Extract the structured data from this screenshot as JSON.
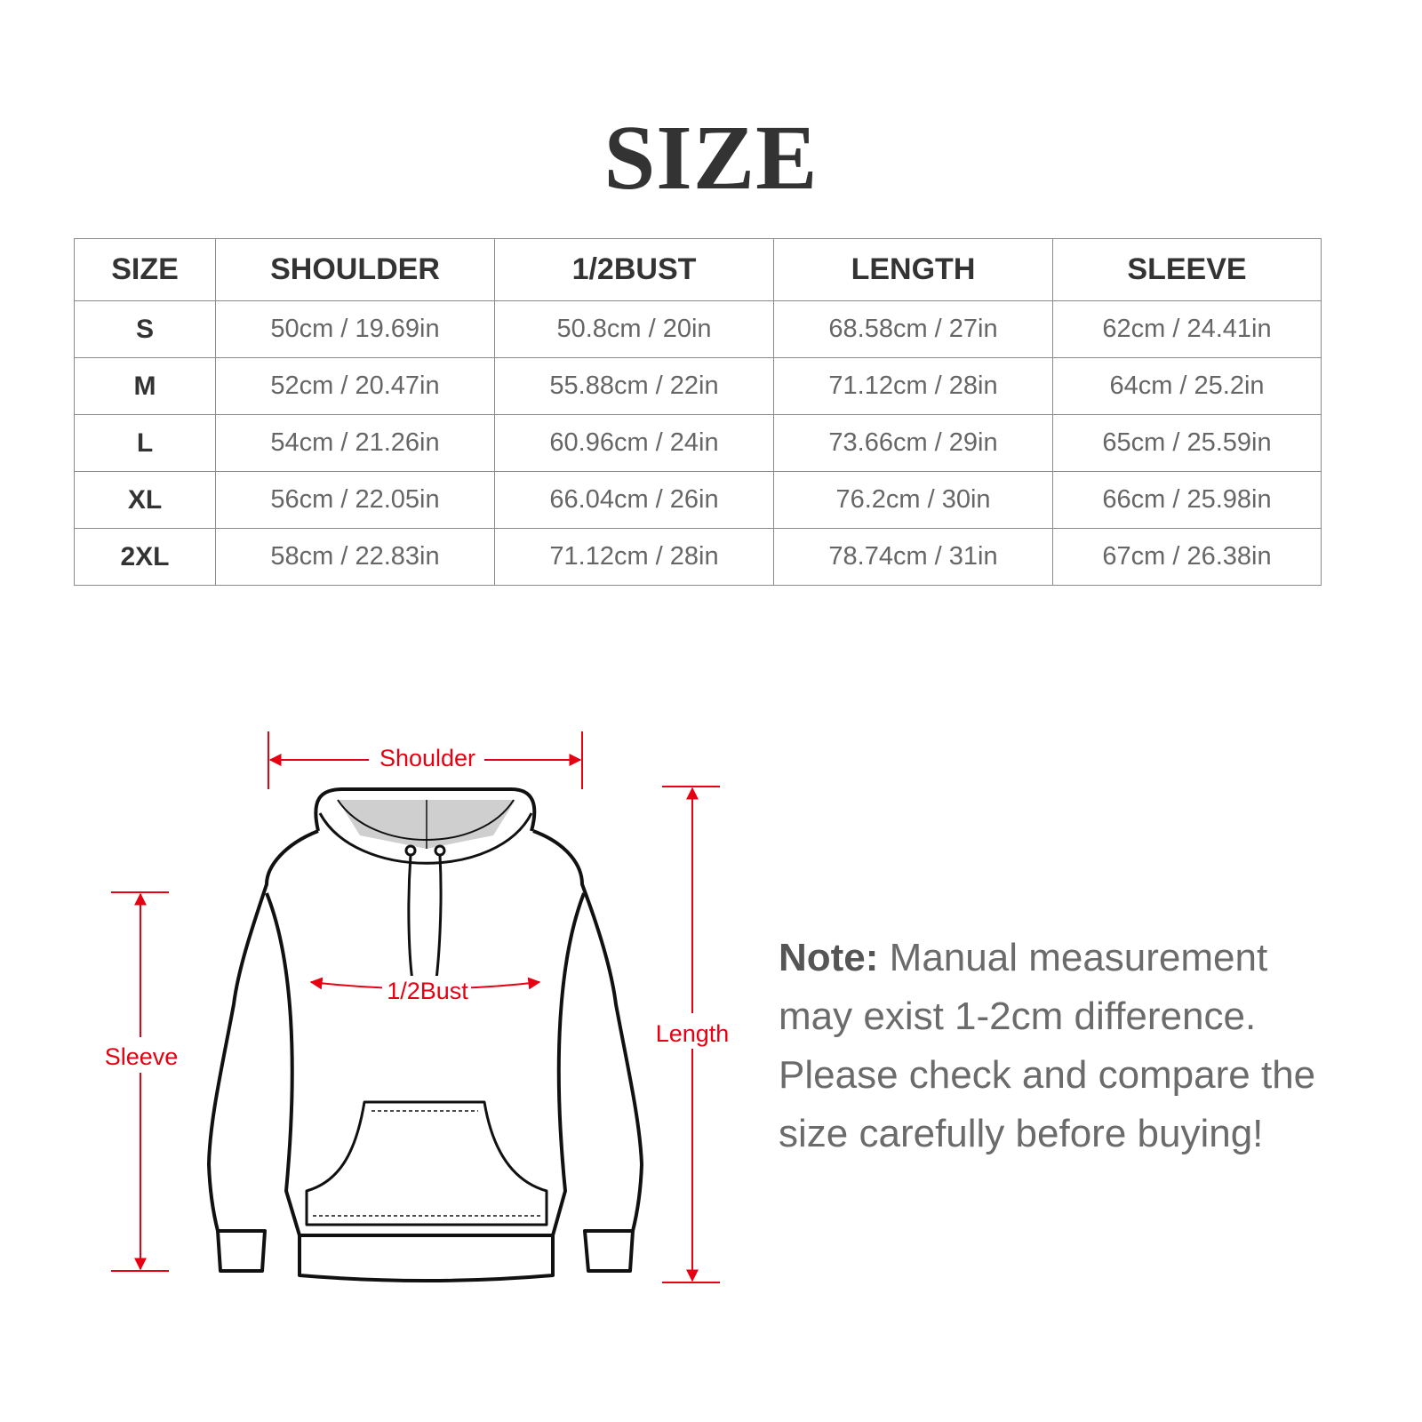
{
  "title": "SIZE",
  "table": {
    "headers": [
      "SIZE",
      "SHOULDER",
      "1/2BUST",
      "LENGTH",
      "SLEEVE"
    ],
    "rows": [
      [
        "S",
        "50cm / 19.69in",
        "50.8cm / 20in",
        "68.58cm / 27in",
        "62cm / 24.41in"
      ],
      [
        "M",
        "52cm / 20.47in",
        "55.88cm / 22in",
        "71.12cm / 28in",
        "64cm / 25.2in"
      ],
      [
        "L",
        "54cm / 21.26in",
        "60.96cm / 24in",
        "73.66cm / 29in",
        "65cm / 25.59in"
      ],
      [
        "XL",
        "56cm / 22.05in",
        "66.04cm / 26in",
        "76.2cm / 30in",
        "66cm / 25.98in"
      ],
      [
        "2XL",
        "58cm / 22.83in",
        "71.12cm / 28in",
        "78.74cm / 31in",
        "67cm / 26.38in"
      ]
    ]
  },
  "diagram": {
    "shoulder": "Shoulder",
    "bust": "1/2Bust",
    "length": "Length",
    "sleeve": "Sleeve",
    "accent_color": "#e60012"
  },
  "note": {
    "label": "Note:",
    "text": " Manual measurement may exist 1-2cm difference. Please check and compare the size carefully before buying!"
  }
}
